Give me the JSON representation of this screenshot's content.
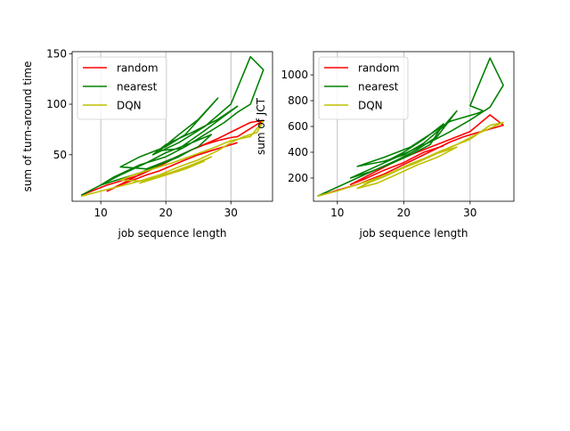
{
  "chart_data": [
    {
      "type": "line",
      "xlabel": "job sequence length",
      "ylabel": "sum of turn-around time",
      "xlim": [
        5.6,
        36.4
      ],
      "ylim": [
        4,
        152
      ],
      "xticks": [
        10,
        20,
        30
      ],
      "yticks": [
        50,
        100,
        150
      ],
      "grid": "x-only",
      "legend_position": "top-left",
      "series": [
        {
          "name": "random",
          "color": "#ff0000",
          "x": [
            7,
            9,
            11,
            13,
            15,
            16,
            18,
            20,
            22,
            24,
            26,
            28,
            30,
            31,
            33,
            34,
            35,
            33,
            28,
            24,
            21,
            18,
            15,
            11,
            13,
            17,
            19,
            23,
            25,
            27,
            31
          ],
          "y": [
            10,
            15,
            20,
            24,
            28,
            30,
            36,
            42,
            49,
            55,
            60,
            64,
            67,
            68,
            76,
            80,
            84,
            82,
            66,
            55,
            46,
            38,
            27,
            14,
            20,
            30,
            34,
            45,
            50,
            54,
            62
          ]
        },
        {
          "name": "nearest",
          "color": "#008000",
          "x": [
            7,
            10,
            13,
            17,
            20,
            24,
            27,
            25,
            21,
            17,
            13,
            16,
            20,
            23,
            28,
            25,
            22,
            19,
            22,
            26,
            31,
            28,
            24,
            20,
            18,
            22,
            26,
            30,
            33,
            35,
            33,
            31,
            29,
            26,
            23,
            20,
            16,
            12,
            10,
            13,
            16,
            19,
            22,
            24
          ],
          "y": [
            10,
            20,
            30,
            42,
            52,
            62,
            70,
            58,
            46,
            36,
            38,
            48,
            58,
            70,
            106,
            85,
            70,
            54,
            56,
            74,
            98,
            85,
            72,
            60,
            50,
            62,
            78,
            100,
            147,
            134,
            100,
            92,
            82,
            70,
            58,
            48,
            40,
            28,
            20,
            26,
            32,
            40,
            48,
            55
          ]
        },
        {
          "name": "DQN",
          "color": "#bfbf00",
          "x": [
            7,
            10,
            13,
            16,
            19,
            22,
            25,
            28,
            30,
            32,
            34,
            35,
            33,
            30,
            27,
            24,
            21,
            18,
            15,
            13,
            16,
            19,
            22,
            25,
            27,
            24,
            21,
            18,
            16,
            19,
            23,
            26
          ],
          "y": [
            9,
            14,
            19,
            24,
            30,
            38,
            45,
            54,
            62,
            68,
            72,
            84,
            68,
            64,
            56,
            49,
            42,
            36,
            30,
            25,
            24,
            28,
            34,
            42,
            48,
            40,
            33,
            27,
            22,
            28,
            36,
            44
          ]
        }
      ]
    },
    {
      "type": "line",
      "xlabel": "job sequence length",
      "ylabel": "sum of JCT",
      "xlim": [
        6.4,
        36.6
      ],
      "ylim": [
        20,
        1180
      ],
      "xticks": [
        10,
        20,
        30
      ],
      "yticks": [
        200,
        400,
        600,
        800,
        1000
      ],
      "grid": "x-only",
      "legend_position": "top-left",
      "series": [
        {
          "name": "random",
          "color": "#ff0000",
          "x": [
            7,
            9,
            11,
            13,
            15,
            17,
            19,
            21,
            23,
            25,
            27,
            29,
            31,
            33,
            35,
            34,
            33,
            30,
            27,
            24,
            21,
            18,
            15,
            12,
            14,
            17,
            20,
            23,
            26
          ],
          "y": [
            60,
            90,
            120,
            150,
            190,
            230,
            280,
            330,
            380,
            430,
            480,
            520,
            550,
            580,
            610,
            650,
            690,
            560,
            500,
            440,
            380,
            310,
            230,
            150,
            190,
            260,
            320,
            400,
            450
          ]
        },
        {
          "name": "nearest",
          "color": "#008000",
          "x": [
            7,
            10,
            13,
            16,
            19,
            22,
            25,
            28,
            26,
            23,
            20,
            17,
            13,
            17,
            21,
            24,
            27,
            31,
            32,
            30,
            33,
            35,
            33,
            30,
            27,
            24,
            21,
            18,
            15,
            12,
            15,
            18,
            21,
            24,
            26,
            23,
            20,
            17
          ],
          "y": [
            60,
            130,
            200,
            270,
            340,
            420,
            520,
            720,
            600,
            470,
            380,
            330,
            290,
            360,
            440,
            540,
            640,
            700,
            720,
            760,
            1130,
            920,
            750,
            650,
            560,
            480,
            410,
            340,
            270,
            200,
            250,
            310,
            380,
            460,
            620,
            500,
            400,
            320
          ]
        },
        {
          "name": "DQN",
          "color": "#bfbf00",
          "x": [
            7,
            10,
            13,
            16,
            19,
            22,
            25,
            28,
            31,
            34,
            35,
            33,
            30,
            27,
            24,
            21,
            18,
            15,
            13,
            16,
            19,
            22,
            25,
            28,
            25,
            22,
            19,
            16,
            14,
            17,
            20,
            23,
            26
          ],
          "y": [
            60,
            100,
            150,
            200,
            260,
            320,
            390,
            460,
            540,
            610,
            630,
            610,
            500,
            440,
            370,
            310,
            240,
            170,
            120,
            160,
            230,
            300,
            360,
            440,
            390,
            330,
            260,
            200,
            150,
            210,
            280,
            350,
            420
          ]
        }
      ]
    }
  ]
}
